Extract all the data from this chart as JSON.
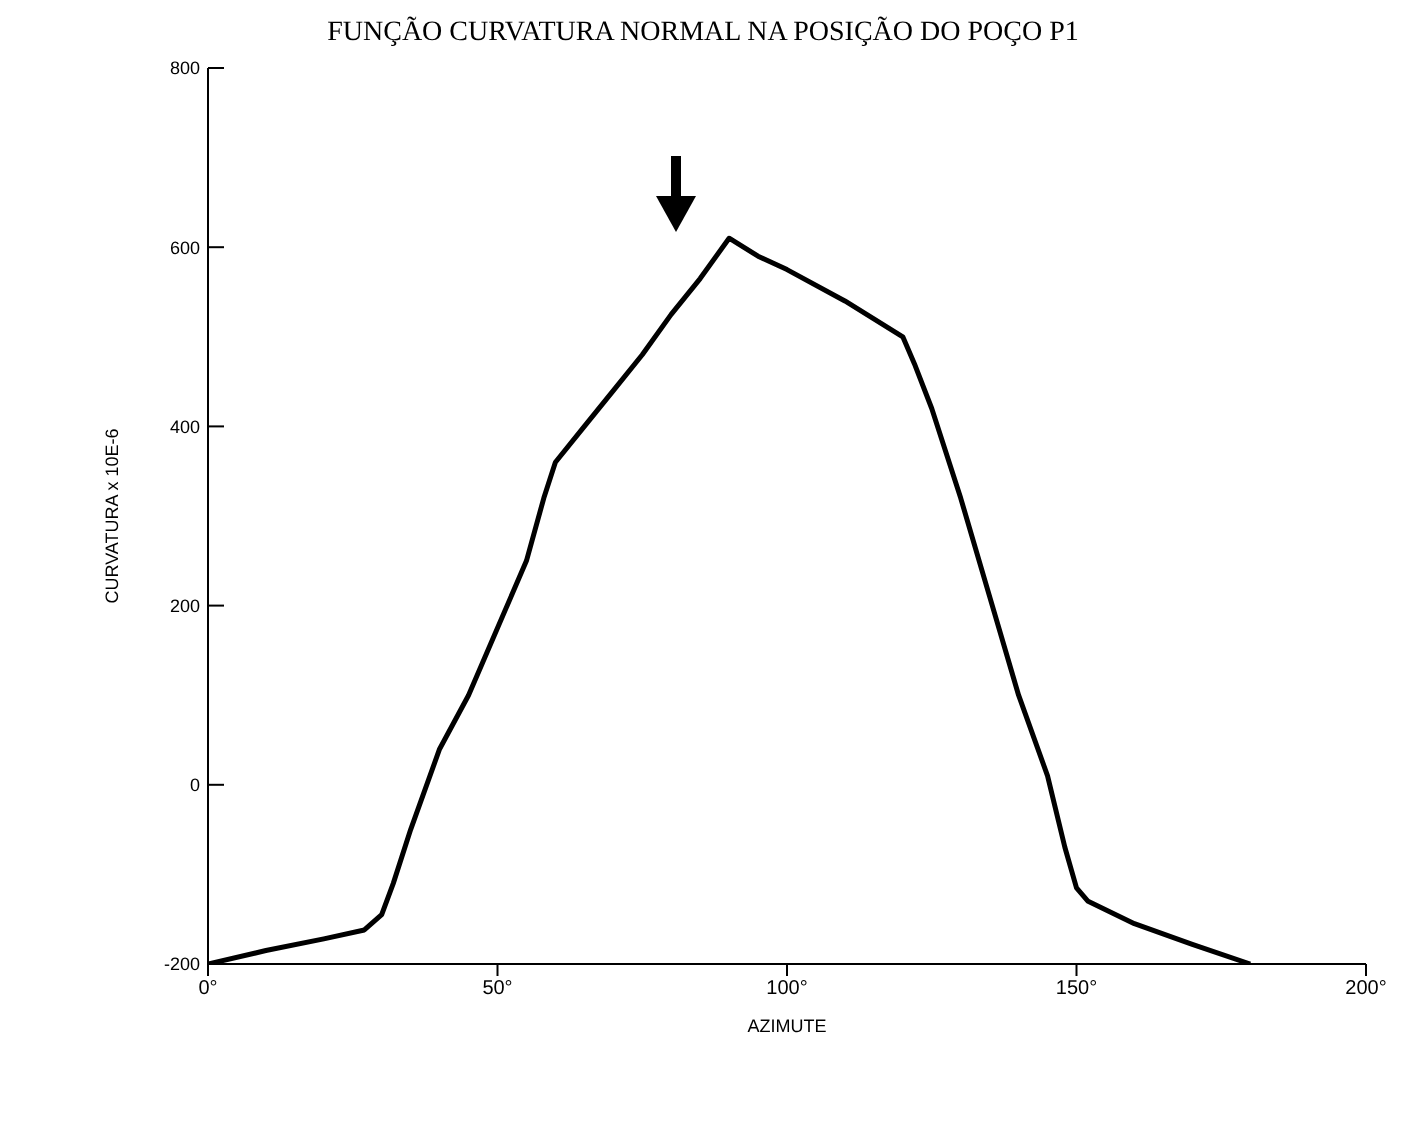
{
  "chart_data": {
    "type": "line",
    "title": "FUNÇÃO CURVATURA NORMAL NA POSIÇÃO DO POÇO P1",
    "xlabel": "AZIMUTE",
    "ylabel": "CURVATURA x 10E-6",
    "x": [
      0,
      10,
      20,
      27,
      30,
      32,
      35,
      40,
      45,
      50,
      55,
      58,
      60,
      65,
      70,
      75,
      80,
      85,
      90,
      95,
      100,
      110,
      115,
      120,
      122,
      125,
      130,
      135,
      140,
      145,
      148,
      150,
      152,
      160,
      170,
      180
    ],
    "series": [
      {
        "color": "#000000",
        "values": [
          -200,
          -185,
          -172,
          -162,
          -145,
          -110,
          -50,
          40,
          100,
          175,
          250,
          320,
          360,
          400,
          440,
          480,
          525,
          565,
          610,
          590,
          575,
          540,
          520,
          500,
          470,
          420,
          320,
          210,
          100,
          10,
          -70,
          -115,
          -130,
          -155,
          -178,
          -200
        ]
      }
    ],
    "xlim": [
      0,
      200
    ],
    "xticks": [
      {
        "value": 0,
        "label": "0°"
      },
      {
        "value": 50,
        "label": "50°"
      },
      {
        "value": 100,
        "label": "100°"
      },
      {
        "value": 150,
        "label": "150°"
      },
      {
        "value": 200,
        "label": "200°"
      }
    ],
    "ylim": [
      -200,
      800
    ],
    "yticks": [
      -200,
      0,
      200,
      400,
      600,
      800
    ],
    "grid": false,
    "legend": false,
    "marker": "none",
    "line_style": "solid"
  }
}
